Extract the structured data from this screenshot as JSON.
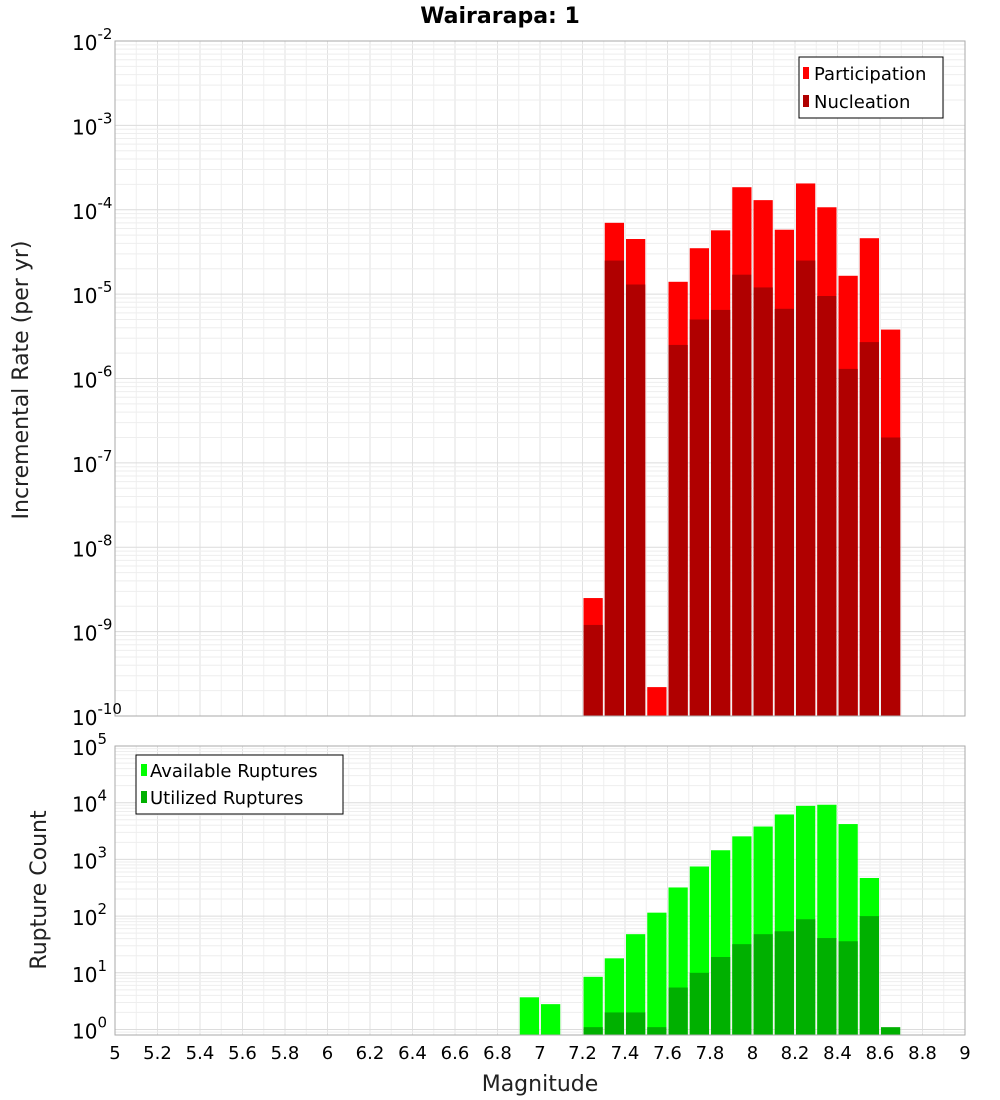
{
  "chart_data": [
    {
      "type": "bar",
      "title": "Wairarapa: 1",
      "ylabel": "Incremental Rate (per yr)",
      "yscale": "log",
      "ylim": [
        1e-10,
        0.01
      ],
      "xlim": [
        5,
        9
      ],
      "bin_width": 0.1,
      "x": [
        7.25,
        7.35,
        7.45,
        7.55,
        7.65,
        7.75,
        7.85,
        7.95,
        8.05,
        8.15,
        8.25,
        8.35,
        8.45,
        8.55,
        8.65
      ],
      "series": [
        {
          "name": "Participation",
          "color": "#ff0000",
          "values": [
            2.5e-09,
            7e-05,
            4.5e-05,
            2.2e-10,
            1.4e-05,
            3.5e-05,
            5.7e-05,
            0.000185,
            0.00013,
            5.8e-05,
            0.000205,
            0.000107,
            1.65e-05,
            4.6e-05,
            3.8e-06
          ]
        },
        {
          "name": "Nucleation",
          "color": "#b00000",
          "values": [
            1.2e-09,
            2.5e-05,
            1.3e-05,
            null,
            2.5e-06,
            5e-06,
            6.5e-06,
            1.7e-05,
            1.2e-05,
            6.7e-06,
            2.5e-05,
            9.5e-06,
            1.3e-06,
            2.7e-06,
            2e-07
          ]
        }
      ],
      "y_ticks": [
        {
          "base": "10",
          "exp": "-10"
        },
        {
          "base": "10",
          "exp": "-9"
        },
        {
          "base": "10",
          "exp": "-8"
        },
        {
          "base": "10",
          "exp": "-7"
        },
        {
          "base": "10",
          "exp": "-6"
        },
        {
          "base": "10",
          "exp": "-5"
        },
        {
          "base": "10",
          "exp": "-4"
        },
        {
          "base": "10",
          "exp": "-3"
        },
        {
          "base": "10",
          "exp": "-2"
        }
      ],
      "legend_position": "top-right",
      "grid": true
    },
    {
      "type": "bar",
      "xlabel": "Magnitude",
      "ylabel": "Rupture Count",
      "yscale": "log",
      "ylim": [
        0.8,
        100000
      ],
      "xlim": [
        5,
        9
      ],
      "bin_width": 0.1,
      "x": [
        6.95,
        7.05,
        7.25,
        7.35,
        7.45,
        7.55,
        7.65,
        7.75,
        7.85,
        7.95,
        8.05,
        8.15,
        8.25,
        8.35,
        8.45,
        8.55,
        8.65
      ],
      "series": [
        {
          "name": "Available Ruptures",
          "color": "#00ff00",
          "values": [
            3.7,
            2.8,
            8.5,
            18,
            48,
            115,
            320,
            750,
            1450,
            2550,
            3800,
            6200,
            8800,
            9200,
            4200,
            470,
            null
          ]
        },
        {
          "name": "Utilized Ruptures",
          "color": "#00b000",
          "values": [
            null,
            null,
            1.1,
            2.0,
            2.0,
            1.1,
            5.5,
            10,
            19,
            32,
            48,
            54,
            88,
            41,
            36,
            100,
            1.1
          ]
        }
      ],
      "x_ticks": [
        "5",
        "5.2",
        "5.4",
        "5.6",
        "5.8",
        "6",
        "6.2",
        "6.4",
        "6.6",
        "6.8",
        "7",
        "7.2",
        "7.4",
        "7.6",
        "7.8",
        "8",
        "8.2",
        "8.4",
        "8.6",
        "8.8",
        "9"
      ],
      "y_ticks": [
        {
          "base": "10",
          "exp": "0"
        },
        {
          "base": "10",
          "exp": "1"
        },
        {
          "base": "10",
          "exp": "2"
        },
        {
          "base": "10",
          "exp": "3"
        },
        {
          "base": "10",
          "exp": "4"
        },
        {
          "base": "10",
          "exp": "5"
        }
      ],
      "legend_position": "top-left",
      "grid": true
    }
  ]
}
